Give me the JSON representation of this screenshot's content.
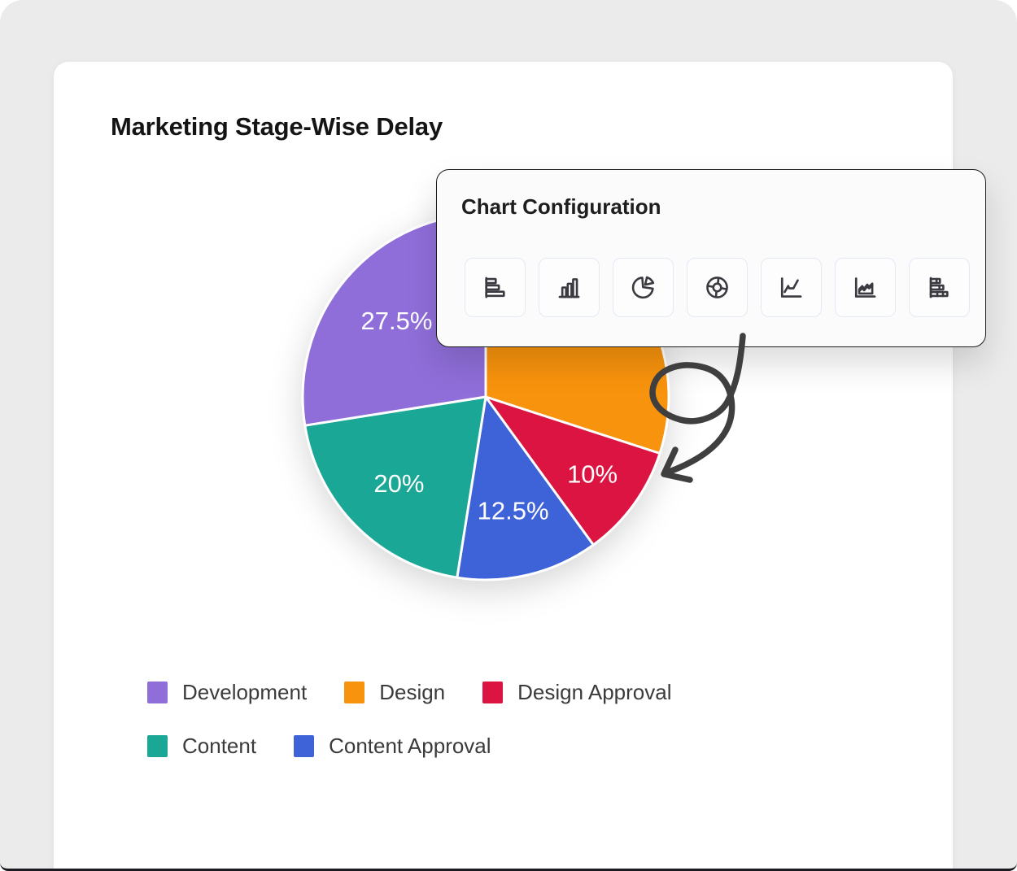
{
  "page": {
    "background_color": "#ebebeb",
    "card_color": "#ffffff"
  },
  "card": {
    "title": "Marketing Stage-Wise Delay"
  },
  "popup": {
    "title": "Chart Configuration",
    "tools": [
      {
        "icon": "bar-horizontal-icon",
        "name": "bar-horizontal"
      },
      {
        "icon": "bar-vertical-icon",
        "name": "bar-vertical"
      },
      {
        "icon": "pie-icon",
        "name": "pie"
      },
      {
        "icon": "donut-icon",
        "name": "donut"
      },
      {
        "icon": "line-icon",
        "name": "line"
      },
      {
        "icon": "area-icon",
        "name": "area"
      },
      {
        "icon": "bar-stacked-icon",
        "name": "bar-stacked"
      }
    ]
  },
  "chart_data": {
    "type": "pie",
    "title": "Marketing Stage-Wise Delay",
    "start_angle_deg": 0,
    "direction": "clockwise",
    "slices": [
      {
        "label": "Design",
        "value": 30,
        "color": "#F8930D",
        "pct_label": "",
        "label_visible": false,
        "label_r": 0.62
      },
      {
        "label": "Design Approval",
        "value": 10,
        "color": "#DC1441",
        "pct_label": "10%",
        "label_visible": true,
        "label_r": 0.72
      },
      {
        "label": "Content Approval",
        "value": 12.5,
        "color": "#3E62D8",
        "pct_label": "12.5%",
        "label_visible": true,
        "label_r": 0.64
      },
      {
        "label": "Content",
        "value": 20,
        "color": "#1BA795",
        "pct_label": "20%",
        "label_visible": true,
        "label_r": 0.67
      },
      {
        "label": "Development",
        "value": 27.5,
        "color": "#8F6ED9",
        "pct_label": "27.5%",
        "label_visible": true,
        "label_r": 0.64
      }
    ],
    "legend_position": "bottom-left"
  },
  "legend": {
    "rows": [
      [
        {
          "label": "Development",
          "color": "#8F6ED9"
        },
        {
          "label": "Design",
          "color": "#F8930D"
        },
        {
          "label": "Design Approval",
          "color": "#DC1441"
        }
      ],
      [
        {
          "label": "Content",
          "color": "#1BA795"
        },
        {
          "label": "Content Approval",
          "color": "#3E62D8"
        }
      ]
    ]
  },
  "annotation": {
    "arrow_color": "#3f3f3f"
  }
}
